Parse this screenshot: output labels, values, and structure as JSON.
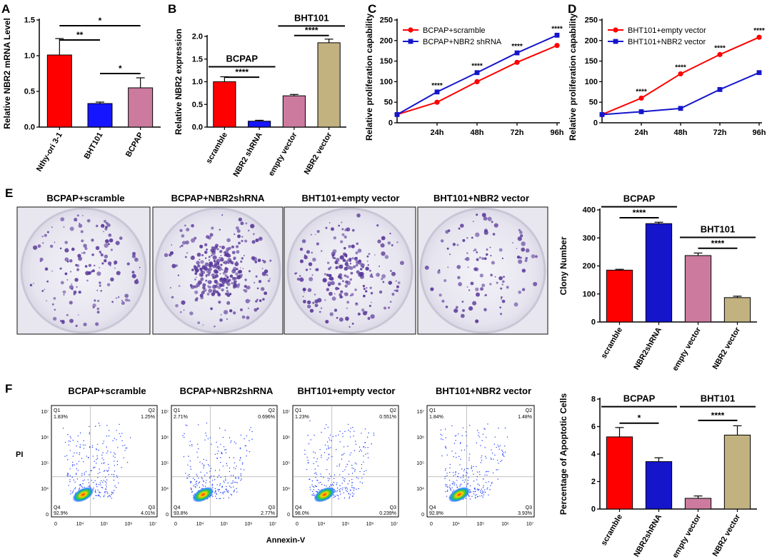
{
  "chart_data": [
    {
      "panel": "A",
      "type": "bar",
      "ylabel": "Relative NBR2 mRNA Level",
      "ylim": [
        0,
        1.5
      ],
      "yticks": [
        0.0,
        0.5,
        1.0,
        1.5
      ],
      "categories": [
        "Nthy-ori 3-1",
        "BHT101",
        "BCPAP"
      ],
      "values": [
        1.01,
        0.33,
        0.55
      ],
      "errors": [
        0.23,
        0.02,
        0.14
      ],
      "colors": [
        "#ff0000",
        "#1515ff",
        "#cc7b9f"
      ],
      "significance": [
        {
          "from": 0,
          "to": 1,
          "y": 1.22,
          "label": "**"
        },
        {
          "from": 0,
          "to": 2,
          "y": 1.42,
          "label": "*"
        },
        {
          "from": 1,
          "to": 2,
          "y": 0.75,
          "label": "*"
        }
      ]
    },
    {
      "panel": "B",
      "type": "bar",
      "ylabel": "Relative NBR2 expression",
      "ylim": [
        0,
        2.0
      ],
      "yticks": [
        0.0,
        0.5,
        1.0,
        1.5,
        2.0
      ],
      "categories": [
        "scramble",
        "NBR2 shRNA",
        "empty vector",
        "NBR2 vector"
      ],
      "values": [
        1.0,
        0.13,
        0.69,
        1.86
      ],
      "errors": [
        0.11,
        0.02,
        0.03,
        0.08
      ],
      "colors": [
        "#ff0000",
        "#1515ff",
        "#cc7b9f",
        "#c2b280"
      ],
      "groups": [
        {
          "label": "BCPAP",
          "from": 0,
          "to": 1,
          "y": 1.33
        },
        {
          "label": "BHT101",
          "from": 2,
          "to": 3,
          "y": 2.23
        }
      ],
      "significance": [
        {
          "from": 0,
          "to": 1,
          "y": 1.1,
          "label": "****"
        },
        {
          "from": 2,
          "to": 3,
          "y": 2.02,
          "label": "****"
        }
      ]
    },
    {
      "panel": "C",
      "type": "line",
      "ylabel": "Relative proliferation capability",
      "ylim": [
        0,
        250
      ],
      "yticks": [
        0,
        50,
        100,
        150,
        200,
        250
      ],
      "x": [
        "0h",
        "24h",
        "48h",
        "72h",
        "96h"
      ],
      "xticks": [
        "24h",
        "48h",
        "72h",
        "96h"
      ],
      "series": [
        {
          "name": "BCPAP+scramble",
          "color": "#ff0000",
          "marker": "circle",
          "values": [
            20,
            50,
            100,
            147,
            188
          ]
        },
        {
          "name": "BCPAP+NBR2 shRNA",
          "color": "#1515cc",
          "marker": "square",
          "values": [
            20,
            75,
            122,
            170,
            213
          ]
        }
      ],
      "annotations": [
        "****",
        "****",
        "****",
        "****"
      ]
    },
    {
      "panel": "D",
      "type": "line",
      "ylabel": "Relative proliferation capability",
      "ylim": [
        0,
        250
      ],
      "yticks": [
        0,
        50,
        100,
        150,
        200,
        250
      ],
      "x": [
        "0h",
        "24h",
        "48h",
        "72h",
        "96h"
      ],
      "xticks": [
        "24h",
        "48h",
        "72h",
        "96h"
      ],
      "series": [
        {
          "name": "BHT101+empty vector",
          "color": "#ff0000",
          "marker": "circle",
          "values": [
            20,
            60,
            119,
            166,
            208
          ]
        },
        {
          "name": "BHT101+NBR2 vector",
          "color": "#1515cc",
          "marker": "square",
          "values": [
            20,
            27,
            35,
            81,
            122
          ]
        }
      ],
      "annotations": [
        "****",
        "****",
        "****",
        "****"
      ]
    },
    {
      "panel": "E",
      "type": "bar",
      "ylabel": "Clony Number",
      "ylim": [
        0,
        400
      ],
      "yticks": [
        0,
        100,
        200,
        300,
        400
      ],
      "categories": [
        "scramble",
        "NBR2shRNA",
        "empty vector",
        "NBR2 vector"
      ],
      "values": [
        185,
        351,
        237,
        87
      ],
      "errors": [
        3,
        5,
        9,
        5
      ],
      "colors": [
        "#ff0000",
        "#1515cc",
        "#cc7b9f",
        "#c2b280"
      ],
      "groups": [
        {
          "label": "BCPAP",
          "from": 0,
          "to": 1,
          "y": 411
        },
        {
          "label": "BHT101",
          "from": 2,
          "to": 3,
          "y": 302
        }
      ],
      "significance": [
        {
          "from": 0,
          "to": 1,
          "y": 372,
          "label": "****"
        },
        {
          "from": 2,
          "to": 3,
          "y": 263,
          "label": "****"
        }
      ]
    },
    {
      "panel": "F",
      "type": "bar",
      "ylabel": "Percentage of Apoptotic Cells",
      "ylim": [
        0,
        8
      ],
      "yticks": [
        0,
        2,
        4,
        6,
        8
      ],
      "categories": [
        "scramble",
        "NBR2shRNA",
        "empty vector",
        "NBR2 vector"
      ],
      "values": [
        5.25,
        3.45,
        0.78,
        5.38
      ],
      "errors": [
        0.68,
        0.28,
        0.17,
        0.68
      ],
      "colors": [
        "#ff0000",
        "#1515cc",
        "#cc7b9f",
        "#c2b280"
      ],
      "groups": [
        {
          "label": "BCPAP",
          "from": 0,
          "to": 1,
          "y": 7.45
        },
        {
          "label": "BHT101",
          "from": 2,
          "to": 3,
          "y": 7.45
        }
      ],
      "significance": [
        {
          "from": 0,
          "to": 1,
          "y": 6.25,
          "label": "*"
        },
        {
          "from": 2,
          "to": 3,
          "y": 6.45,
          "label": "****"
        }
      ]
    }
  ],
  "figure": {
    "panel_labels": [
      "A",
      "B",
      "C",
      "D",
      "E",
      "F"
    ],
    "colony_titles": [
      "BCPAP+scramble",
      "BCPAP+NBR2shRNA",
      "BHT101+empty vector",
      "BHT101+NBR2 vector"
    ],
    "flow_titles": [
      "BCPAP+scramble",
      "BCPAP+NBR2shRNA",
      "BHT101+empty vector",
      "BHT101+NBR2 vector"
    ],
    "flow_quadrants": [
      {
        "q1": "Q1",
        "q1v": "1.83%",
        "q2": "Q2",
        "q2v": "1.25%",
        "q3": "Q3",
        "q3v": "4.01%",
        "q4": "Q4",
        "q4v": "92.9%"
      },
      {
        "q1": "Q1",
        "q1v": "2.71%",
        "q2": "Q2",
        "q2v": "0.696%",
        "q3": "Q3",
        "q3v": "2.77%",
        "q4": "Q4",
        "q4v": "93.8%"
      },
      {
        "q1": "Q1",
        "q1v": "1.23%",
        "q2": "Q2",
        "q2v": "0.551%",
        "q3": "Q3",
        "q3v": "0.239%",
        "q4": "Q4",
        "q4v": "98.0%"
      },
      {
        "q1": "Q1",
        "q1v": "1.84%",
        "q2": "Q2",
        "q2v": "1.48%",
        "q3": "Q3",
        "q3v": "3.93%",
        "q4": "Q4",
        "q4v": "92.8%"
      }
    ],
    "flow_y_ticks": [
      "10⁷",
      "10⁶",
      "10⁵",
      "10⁴",
      "0"
    ],
    "flow_x_ticks": [
      "0",
      "10⁴",
      "10⁵",
      "10⁶",
      "10⁷"
    ],
    "flow_ylabel": "PI",
    "flow_xlabel": "Annexin-V",
    "colors": {
      "dish_rim": "#c9c7d6",
      "dish_inner": "#eeeef3",
      "colony": "#5a3a9a",
      "plot_frame": "#000000"
    }
  }
}
